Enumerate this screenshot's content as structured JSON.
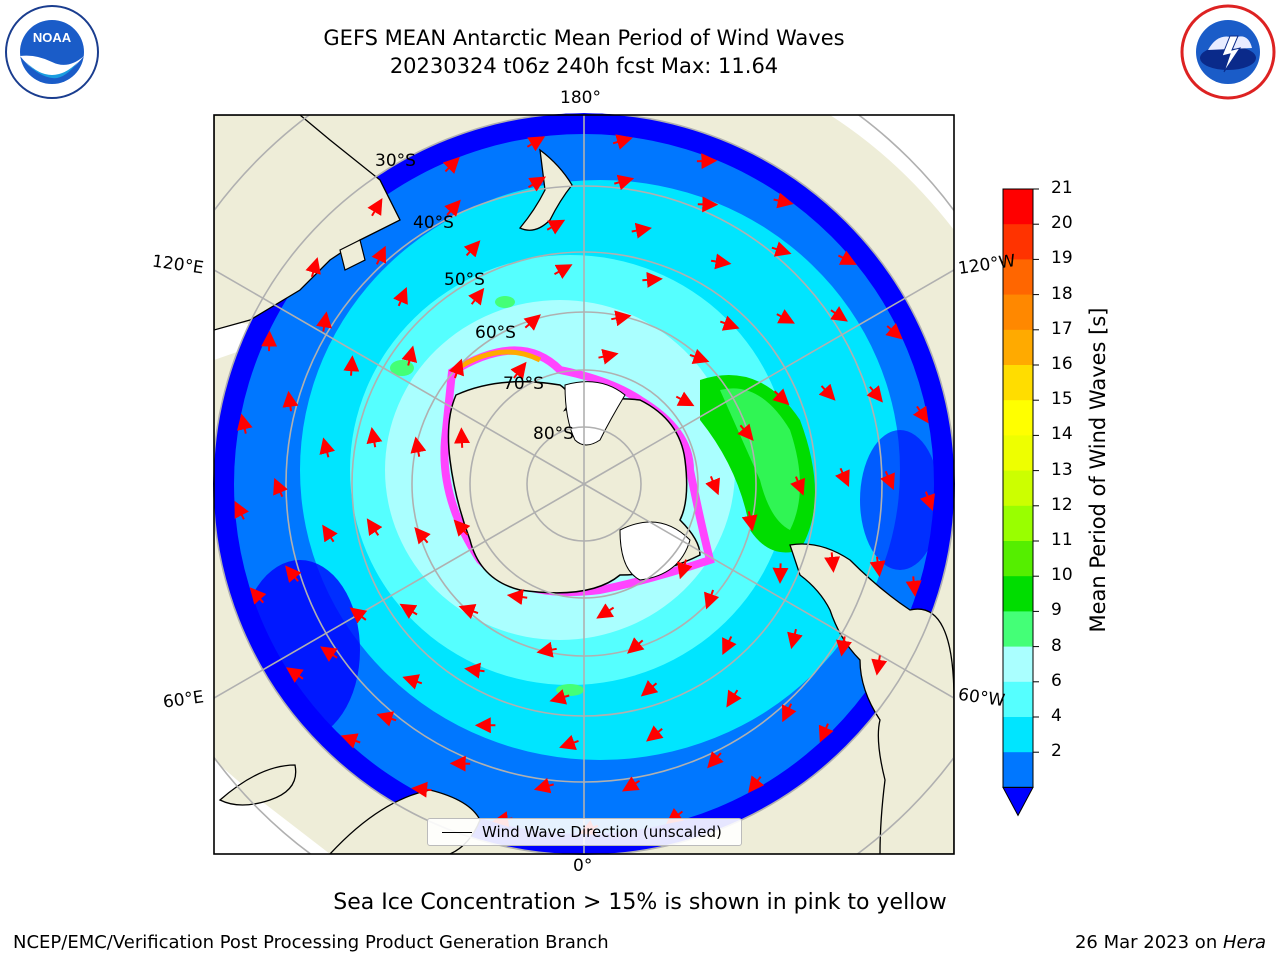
{
  "header": {
    "title_line1": "GEFS MEAN Antarctic Mean Period of Wind Waves",
    "title_line2": "20230324 t06z 240h fcst   Max: 11.64"
  },
  "logos": {
    "left": {
      "name": "noaa-logo",
      "text": "NOAA",
      "ring_text": "NATIONAL OCEANIC AND ATMOSPHERIC ADMINISTRATION · U.S. DEPARTMENT OF COMMERCE"
    },
    "right": {
      "name": "nws-logo",
      "ring_text": "NATIONAL WEATHER SERVICE"
    }
  },
  "map": {
    "projection": "south-polar-stereographic",
    "longitude_labels": {
      "top": "180°",
      "bottom": "0°",
      "upper_left": "120°E",
      "upper_right": "120°W",
      "lower_left": "60°E",
      "lower_right": "60°W"
    },
    "latitude_labels": [
      "30°S",
      "40°S",
      "50°S",
      "60°S",
      "70°S",
      "80°S"
    ],
    "legend": "Wind Wave Direction (unscaled)",
    "colors": {
      "land": "#eeedd8",
      "ocean_deep": "#0000ff",
      "ocean": "#0077ff",
      "ocean_light": "#00e5ff",
      "ocean_pale": "#aaffff",
      "green": "#00dd00",
      "ice_pink": "#ff44ff",
      "arrows": "#ff0000",
      "grid": "#b0b0b0"
    }
  },
  "colorbar": {
    "label": "Mean Period of Wind Waves [s]",
    "ticks": [
      "21",
      "20",
      "19",
      "18",
      "17",
      "16",
      "15",
      "14",
      "13",
      "12",
      "11",
      "10",
      "9",
      "8",
      "6",
      "4",
      "2"
    ],
    "colors": [
      "#ff0000",
      "#ff3300",
      "#ff6600",
      "#ff8800",
      "#ffaa00",
      "#ffdd00",
      "#ffff00",
      "#eeff00",
      "#ccff00",
      "#99ff00",
      "#55ee00",
      "#00dd00",
      "#44ff77",
      "#aaffff",
      "#55ffff",
      "#00e5ff",
      "#0077ff"
    ],
    "under_color": "#0000ff"
  },
  "notes": {
    "sea_ice": "Sea Ice Concentration > 15% is shown in pink to yellow"
  },
  "footer": {
    "left": "NCEP/EMC/Verification Post Processing Product Generation Branch",
    "right_prefix": "26 Mar 2023 on ",
    "right_machine": "Hera"
  }
}
